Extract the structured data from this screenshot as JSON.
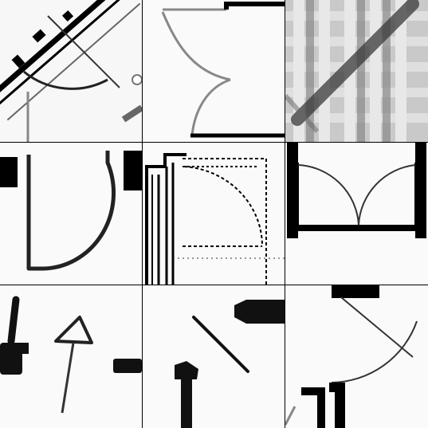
{
  "grid": {
    "rows": 3,
    "cols": 3,
    "background": "#ffffff",
    "divider_color": "#000000"
  },
  "tiles": [
    {
      "subject": "blueprint-door-swing-diagonal-wall"
    },
    {
      "subject": "double-door-arc-sketch"
    },
    {
      "subject": "blurred-plaid-texture-diagonal"
    },
    {
      "subject": "thick-quarter-arc-door"
    },
    {
      "subject": "dashed-arc-door-technical"
    },
    {
      "subject": "double-door-two-arcs"
    },
    {
      "subject": "triangle-marker-symbol"
    },
    {
      "subject": "diagonal-line-door-symbol"
    },
    {
      "subject": "corner-door-arc-with-line"
    }
  ]
}
